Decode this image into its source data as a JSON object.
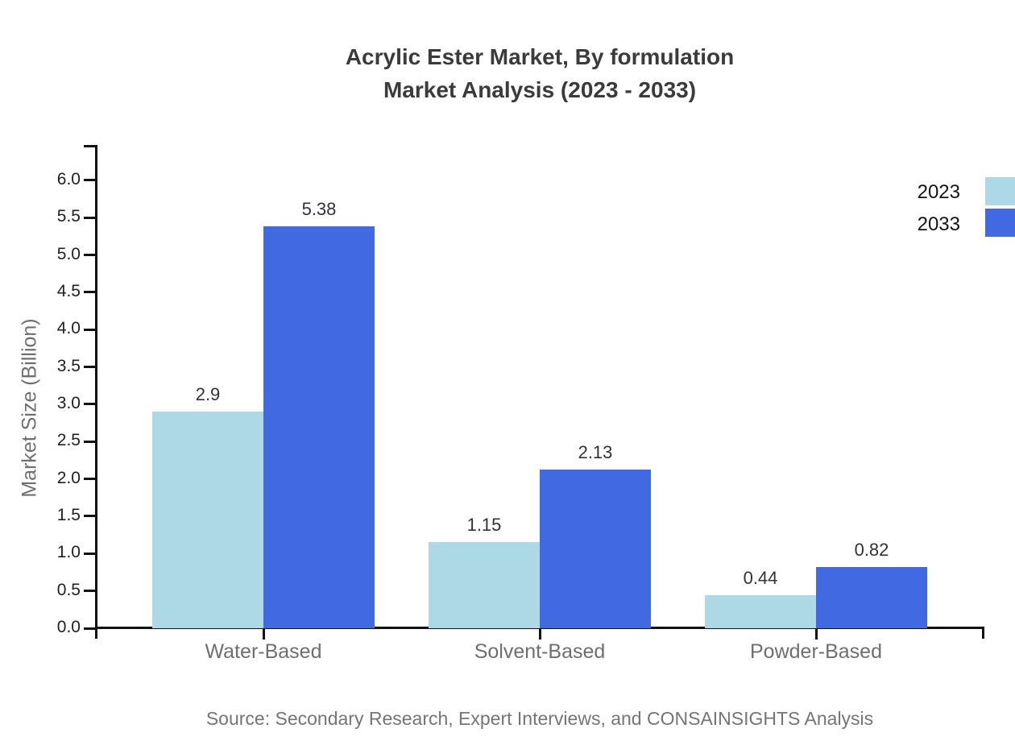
{
  "title": {
    "line1": "Acrylic Ester Market, By formulation",
    "line2": "Market Analysis (2023 - 2033)"
  },
  "legend": [
    {
      "label": "2023",
      "color": "#ADD8E6"
    },
    {
      "label": "2033",
      "color": "#4169E1"
    }
  ],
  "chart_data": {
    "type": "bar",
    "title": "Acrylic Ester Market, By formulation Market Analysis (2023 - 2033)",
    "categories": [
      "Water-Based",
      "Solvent-Based",
      "Powder-Based"
    ],
    "series": [
      {
        "name": "2023",
        "color": "#ADD8E6",
        "values": [
          2.9,
          1.15,
          0.44
        ],
        "labels": [
          "2.9",
          "1.15",
          "0.44"
        ]
      },
      {
        "name": "2033",
        "color": "#4169E1",
        "values": [
          5.38,
          2.13,
          0.82
        ],
        "labels": [
          "5.38",
          "2.13",
          "0.82"
        ]
      }
    ],
    "xlabel": "",
    "ylabel": "Market Size (Billion)",
    "ylim": [
      0.0,
      6.5
    ],
    "yticks": [
      0.0,
      0.5,
      1.0,
      1.5,
      2.0,
      2.5,
      3.0,
      3.5,
      4.0,
      4.5,
      5.0,
      5.5,
      6.0
    ],
    "ytick_labels": [
      "0.0",
      "0.5",
      "1.0",
      "1.5",
      "2.0",
      "2.5",
      "3.0",
      "3.5",
      "4.0",
      "4.5",
      "5.0",
      "5.5",
      "6.0"
    ],
    "grid": false,
    "legend_position": "top-right",
    "value_labels": true
  },
  "source": "Source: Secondary Research, Expert Interviews, and CONSAINSIGHTS Analysis"
}
